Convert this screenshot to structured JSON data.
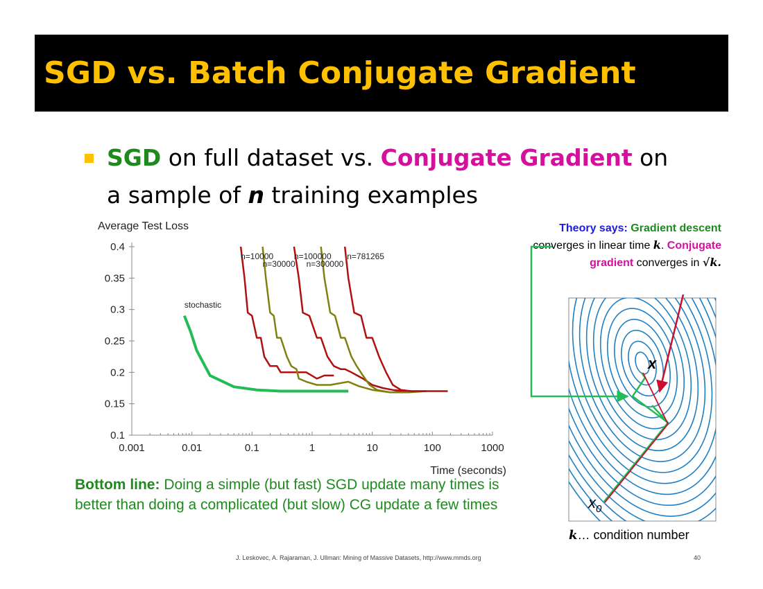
{
  "slide": {
    "title": "SGD vs. Batch Conjugate Gradient",
    "bullet": {
      "sgd": "SGD",
      "text1": " on full dataset vs. ",
      "cg": "Conjugate Gradient",
      "text2": " on",
      "text3": "a sample of ",
      "n": "n",
      "text4": " training examples"
    },
    "theory": {
      "lead": "Theory says:",
      "gd": " Gradient descent",
      "t1": " converges in linear time ",
      "k1": "k",
      "t2": ". ",
      "cg": "Conjugate gradient",
      "t3": " converges in ",
      "sqrtk": "√k",
      "t4": "."
    },
    "bottom": {
      "lead": "Bottom line:",
      "text": " Doing a simple (but fast) SGD update many times is better than doing a complicated (but slow) CG update a few times"
    },
    "condition": {
      "k": "k",
      "text": "… condition number"
    },
    "footer": "J. Leskovec, A. Rajaraman, J. Ullman: Mining of Massive Datasets, http://www.mmds.org",
    "page": "40",
    "diagram": {
      "start_label": "x0",
      "opt_label": "x"
    }
  },
  "chart_data": {
    "type": "line",
    "title": "Average Test Loss",
    "xlabel": "Time (seconds)",
    "ylabel": "",
    "xscale": "log",
    "xlim": [
      0.001,
      1000
    ],
    "ylim": [
      0.1,
      0.4
    ],
    "xticks": [
      0.001,
      0.01,
      0.1,
      1,
      10,
      100,
      1000
    ],
    "xtick_labels": [
      "0.001",
      "0.01",
      "0.1",
      "1",
      "10",
      "100",
      "1000"
    ],
    "yticks": [
      0.1,
      0.15,
      0.2,
      0.25,
      0.3,
      0.35,
      0.4
    ],
    "ytick_labels": [
      "0.1",
      "0.15",
      "0.2",
      "0.25",
      "0.3",
      "0.35",
      "0.4"
    ],
    "series": [
      {
        "name": "stochastic",
        "color": "#22BB55",
        "x": [
          0.0075,
          0.0095,
          0.012,
          0.02,
          0.05,
          0.12,
          0.3,
          1,
          4
        ],
        "y": [
          0.29,
          0.265,
          0.235,
          0.195,
          0.177,
          0.172,
          0.17,
          0.17,
          0.17
        ]
      },
      {
        "name": "n=10000",
        "color": "#B01010",
        "x": [
          0.065,
          0.075,
          0.085,
          0.1,
          0.12,
          0.14,
          0.16,
          0.2,
          0.26,
          0.3,
          0.5,
          0.8,
          1.2,
          1.6,
          2.3
        ],
        "y": [
          0.4,
          0.35,
          0.295,
          0.29,
          0.255,
          0.255,
          0.225,
          0.21,
          0.21,
          0.2,
          0.2,
          0.2,
          0.19,
          0.195,
          0.195
        ]
      },
      {
        "name": "n=30000",
        "color": "#808010",
        "x": [
          0.15,
          0.17,
          0.2,
          0.23,
          0.26,
          0.3,
          0.38,
          0.45,
          0.55,
          0.6,
          0.8,
          1.2,
          2,
          4,
          6,
          10,
          20,
          45
        ],
        "y": [
          0.4,
          0.35,
          0.295,
          0.29,
          0.255,
          0.255,
          0.225,
          0.21,
          0.205,
          0.19,
          0.185,
          0.18,
          0.18,
          0.185,
          0.178,
          0.172,
          0.168,
          0.17
        ]
      },
      {
        "name": "n=100000",
        "color": "#B01010",
        "x": [
          0.5,
          0.6,
          0.7,
          0.9,
          1.2,
          1.4,
          1.8,
          2.3,
          3,
          3.5,
          4.5,
          7,
          10,
          15,
          22,
          35,
          60,
          100,
          180
        ],
        "y": [
          0.4,
          0.35,
          0.295,
          0.29,
          0.255,
          0.255,
          0.225,
          0.21,
          0.205,
          0.205,
          0.2,
          0.19,
          0.18,
          0.175,
          0.172,
          0.17,
          0.17,
          0.17,
          0.17
        ]
      },
      {
        "name": "n=300000",
        "color": "#808010",
        "x": [
          1.4,
          1.6,
          2,
          2.4,
          3,
          3.5,
          4.5,
          5.5,
          7,
          9,
          12,
          20,
          40,
          80
        ],
        "y": [
          0.4,
          0.35,
          0.295,
          0.29,
          0.255,
          0.255,
          0.225,
          0.21,
          0.195,
          0.18,
          0.172,
          0.168,
          0.168,
          0.17
        ]
      },
      {
        "name": "n=781265",
        "color": "#B01010",
        "x": [
          3.5,
          4,
          5,
          6.5,
          8,
          10,
          13,
          17,
          22,
          30,
          45,
          80
        ],
        "y": [
          0.4,
          0.35,
          0.295,
          0.29,
          0.255,
          0.255,
          0.225,
          0.2,
          0.18,
          0.172,
          0.17,
          0.17
        ]
      }
    ],
    "annotations": [
      {
        "text": "n=10000",
        "x": 0.065,
        "y": 0.38
      },
      {
        "text": "n=30000",
        "x": 0.15,
        "y": 0.368
      },
      {
        "text": "n=100000",
        "x": 0.5,
        "y": 0.38
      },
      {
        "text": "n=300000",
        "x": 0.8,
        "y": 0.368
      },
      {
        "text": "n=781265",
        "x": 3.8,
        "y": 0.38
      },
      {
        "text": "stochastic",
        "x": 0.0075,
        "y": 0.303
      }
    ]
  }
}
